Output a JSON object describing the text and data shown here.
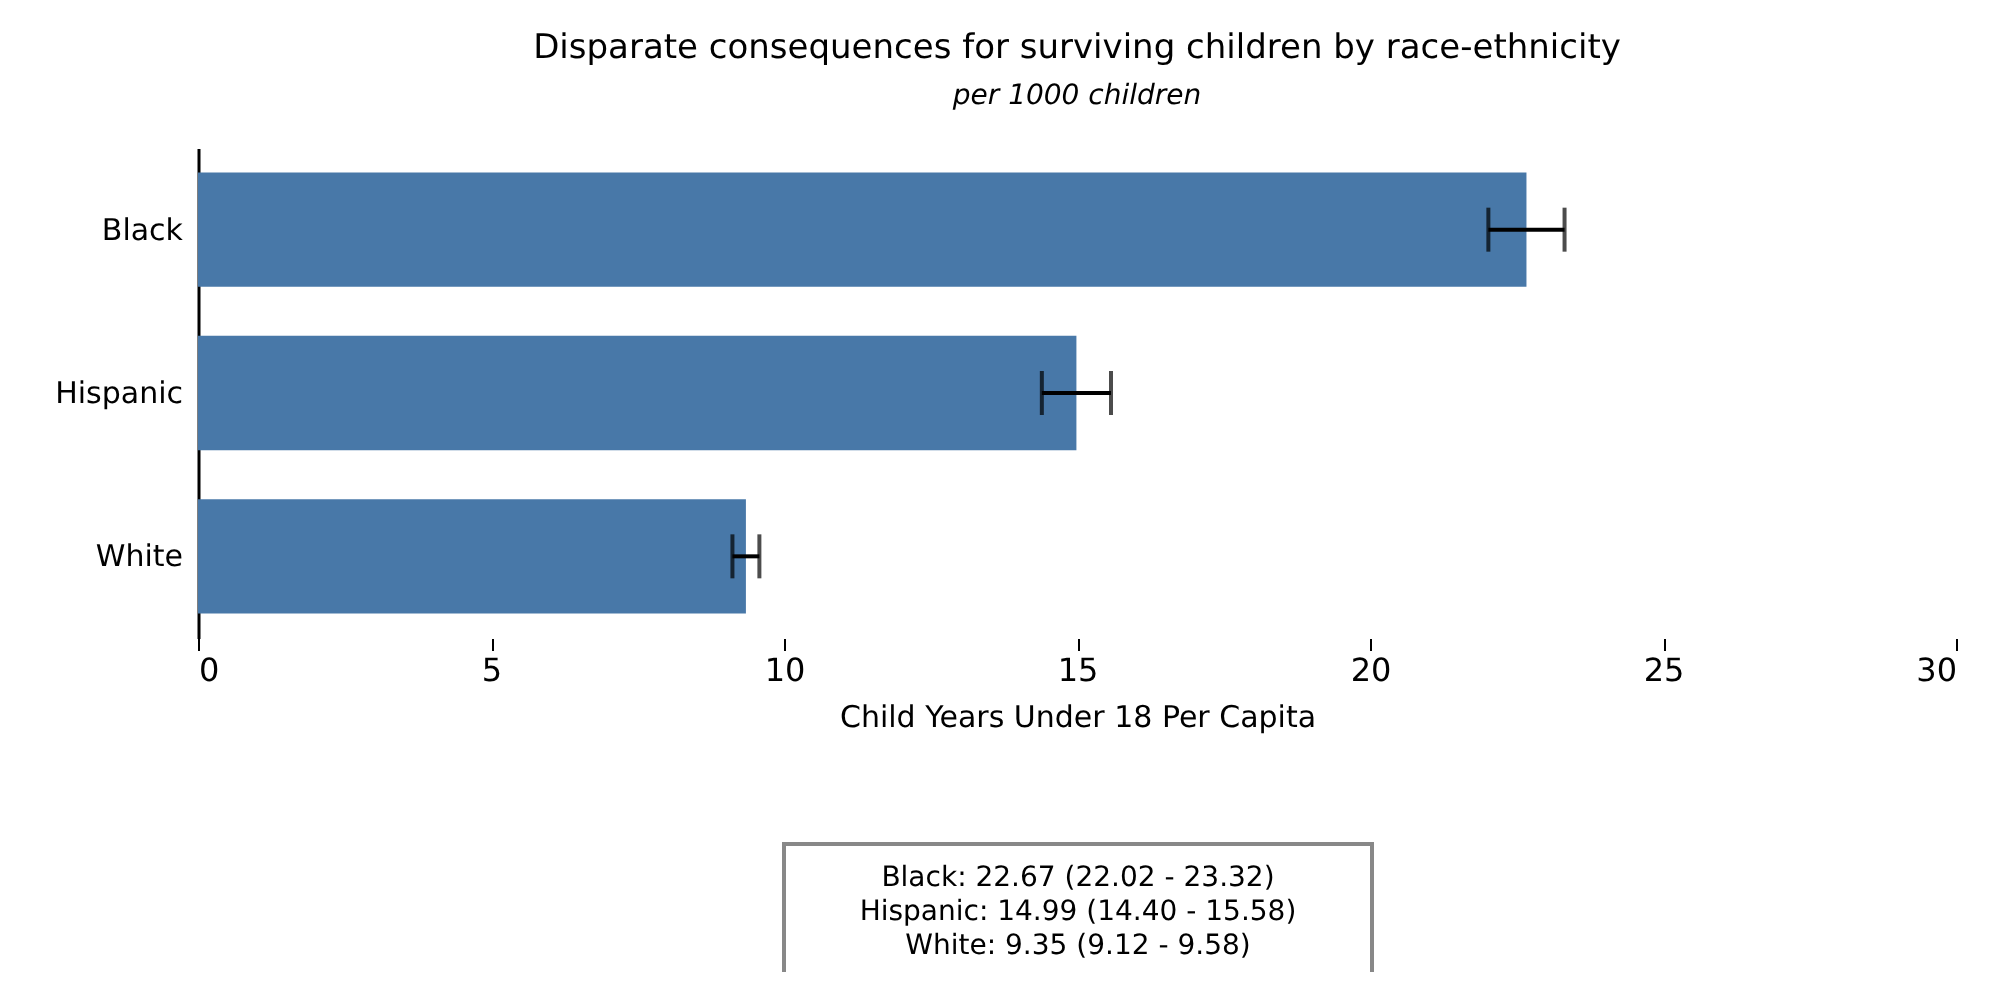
{
  "chart_data": {
    "type": "bar",
    "orientation": "horizontal",
    "title": "Disparate consequences for surviving children by race-ethnicity",
    "subtitle": "per 1000 children",
    "xlabel": "Child Years Under 18 Per Capita",
    "categories": [
      "Black",
      "Hispanic",
      "White"
    ],
    "values": [
      22.67,
      14.99,
      9.35
    ],
    "errors": [
      [
        22.02,
        23.32
      ],
      [
        14.4,
        15.58
      ],
      [
        9.12,
        9.58
      ]
    ],
    "color": "#4878a8",
    "xlim": [
      0,
      30
    ],
    "xticks": [
      0,
      5,
      10,
      15,
      20,
      25,
      30
    ],
    "annotations": [
      "Black: 22.67 (22.02 - 23.32)",
      "Hispanic: 14.99 (14.40 - 15.58)",
      "White: 9.35 (9.12 - 9.58)"
    ]
  }
}
